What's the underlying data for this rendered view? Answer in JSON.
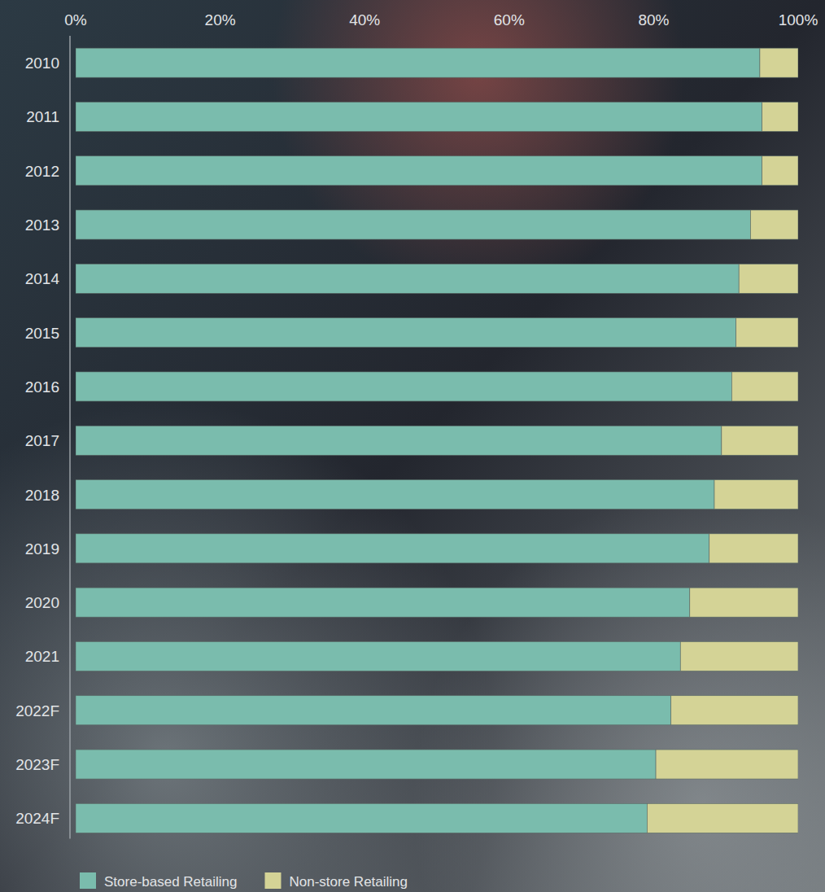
{
  "chart_data": {
    "type": "bar",
    "orientation": "horizontal",
    "stacked": true,
    "legend": "bottom",
    "grid": false,
    "categories": [
      "2010",
      "2011",
      "2012",
      "2013",
      "2014",
      "2015",
      "2016",
      "2017",
      "2018",
      "2019",
      "2020",
      "2021",
      "2022F",
      "2023F",
      "2024F"
    ],
    "series": [
      {
        "name": "Store-based Retailing",
        "color": "#7abcad",
        "values": [
          94.7,
          95.0,
          95.0,
          93.4,
          91.8,
          91.4,
          90.8,
          89.4,
          88.4,
          87.7,
          85.0,
          83.7,
          82.4,
          80.3,
          79.1
        ]
      },
      {
        "name": "Non-store Retailing",
        "color": "#d4d396",
        "values": [
          5.3,
          5.0,
          5.0,
          6.6,
          8.2,
          8.6,
          9.2,
          10.6,
          11.6,
          12.3,
          15.0,
          16.3,
          17.6,
          19.7,
          20.9
        ]
      }
    ],
    "xlim": [
      0,
      100
    ],
    "xticks": [
      {
        "value": 0,
        "label": "0%"
      },
      {
        "value": 20,
        "label": "20%"
      },
      {
        "value": 40,
        "label": "40%"
      },
      {
        "value": 60,
        "label": "60%"
      },
      {
        "value": 80,
        "label": "80%"
      },
      {
        "value": 100,
        "label": "100%"
      }
    ]
  }
}
